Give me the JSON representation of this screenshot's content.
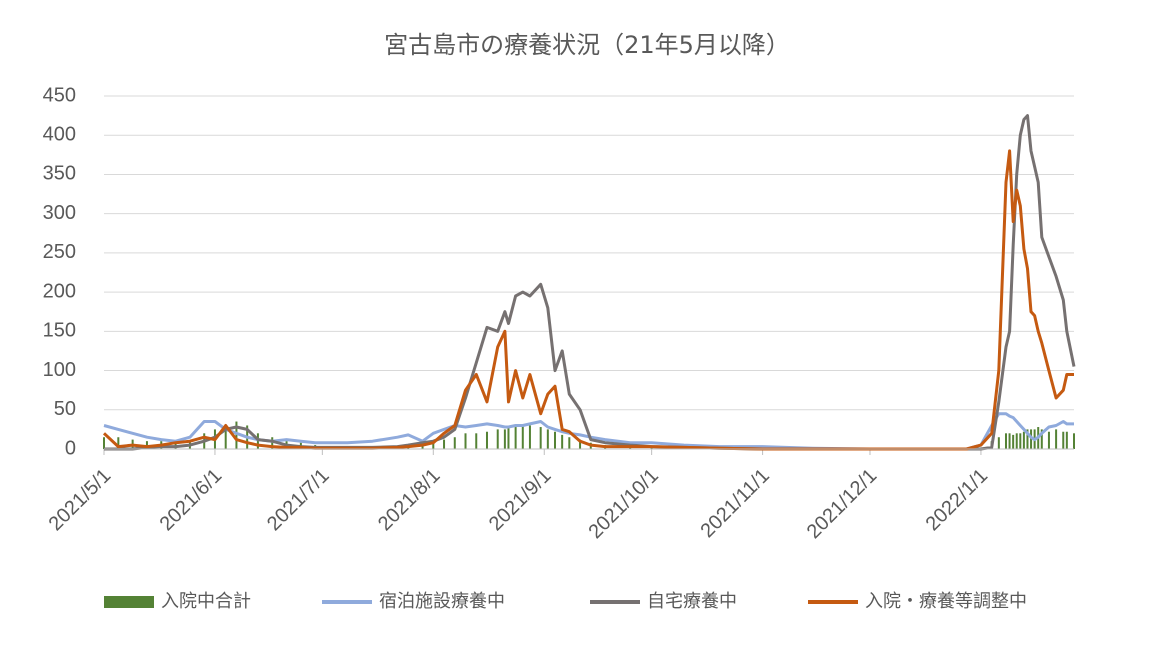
{
  "chart_data": {
    "type": "combo",
    "title": "宮古島市の療養状況（21年5月以降）",
    "x": [
      "2021/5/1",
      "2021/5/5",
      "2021/5/9",
      "2021/5/13",
      "2021/5/17",
      "2021/5/21",
      "2021/5/25",
      "2021/5/29",
      "2021/6/1",
      "2021/6/4",
      "2021/6/7",
      "2021/6/10",
      "2021/6/13",
      "2021/6/17",
      "2021/6/21",
      "2021/6/25",
      "2021/6/29",
      "2021/7/8",
      "2021/7/15",
      "2021/7/22",
      "2021/7/25",
      "2021/7/29",
      "2021/8/1",
      "2021/8/4",
      "2021/8/7",
      "2021/8/10",
      "2021/8/13",
      "2021/8/16",
      "2021/8/19",
      "2021/8/21",
      "2021/8/22",
      "2021/8/24",
      "2021/8/26",
      "2021/8/28",
      "2021/8/31",
      "2021/9/2",
      "2021/9/4",
      "2021/9/6",
      "2021/9/8",
      "2021/9/11",
      "2021/9/14",
      "2021/9/18",
      "2021/9/25",
      "2021/10/1",
      "2021/10/10",
      "2021/10/20",
      "2021/11/1",
      "2021/11/15",
      "2021/12/1",
      "2021/12/15",
      "2021/12/28",
      "2022/1/1",
      "2022/1/4",
      "2022/1/6",
      "2022/1/8",
      "2022/1/9",
      "2022/1/10",
      "2022/1/11",
      "2022/1/12",
      "2022/1/13",
      "2022/1/14",
      "2022/1/15",
      "2022/1/16",
      "2022/1/17",
      "2022/1/18",
      "2022/1/20",
      "2022/1/22",
      "2022/1/24",
      "2022/1/25",
      "2022/1/27"
    ],
    "series": [
      {
        "name": "入院中合計",
        "type": "bar",
        "color": "#548235",
        "values": [
          15,
          15,
          12,
          10,
          10,
          8,
          10,
          20,
          25,
          30,
          35,
          30,
          20,
          15,
          10,
          8,
          5,
          3,
          3,
          3,
          5,
          8,
          10,
          12,
          15,
          20,
          20,
          22,
          25,
          25,
          28,
          28,
          30,
          30,
          28,
          25,
          22,
          18,
          15,
          12,
          8,
          5,
          3,
          2,
          1,
          0,
          0,
          0,
          0,
          0,
          0,
          2,
          10,
          15,
          20,
          20,
          18,
          20,
          20,
          22,
          25,
          25,
          25,
          28,
          25,
          22,
          25,
          22,
          22,
          20
        ]
      },
      {
        "name": "宿泊施設療養中",
        "type": "line",
        "color": "#8faadc",
        "values": [
          30,
          25,
          20,
          15,
          12,
          10,
          15,
          35,
          35,
          25,
          20,
          15,
          12,
          10,
          12,
          10,
          8,
          8,
          10,
          15,
          18,
          10,
          20,
          25,
          30,
          28,
          30,
          32,
          30,
          28,
          28,
          30,
          30,
          32,
          35,
          28,
          25,
          22,
          20,
          18,
          15,
          12,
          8,
          8,
          5,
          3,
          3,
          1,
          0,
          0,
          0,
          5,
          30,
          45,
          45,
          42,
          40,
          35,
          30,
          25,
          20,
          15,
          12,
          15,
          20,
          28,
          30,
          35,
          32,
          32
        ]
      },
      {
        "name": "自宅療養中",
        "type": "line",
        "color": "#767171",
        "values": [
          0,
          0,
          0,
          2,
          3,
          3,
          5,
          10,
          15,
          25,
          28,
          25,
          12,
          10,
          5,
          3,
          2,
          2,
          2,
          3,
          5,
          8,
          10,
          15,
          25,
          65,
          110,
          155,
          150,
          175,
          160,
          195,
          200,
          195,
          210,
          180,
          100,
          125,
          70,
          50,
          12,
          8,
          5,
          3,
          2,
          1,
          0,
          0,
          0,
          0,
          0,
          0,
          2,
          60,
          130,
          150,
          260,
          350,
          400,
          420,
          425,
          380,
          360,
          340,
          270,
          245,
          220,
          190,
          150,
          105
        ]
      },
      {
        "name": "入院・療養等調整中",
        "type": "line",
        "color": "#c55a11",
        "values": [
          20,
          3,
          5,
          3,
          5,
          8,
          10,
          15,
          12,
          30,
          12,
          8,
          5,
          3,
          2,
          2,
          1,
          1,
          1,
          2,
          3,
          5,
          8,
          20,
          30,
          75,
          95,
          60,
          130,
          150,
          60,
          100,
          65,
          95,
          45,
          70,
          80,
          25,
          22,
          10,
          5,
          3,
          3,
          3,
          2,
          1,
          0,
          0,
          0,
          0,
          0,
          5,
          20,
          100,
          340,
          380,
          290,
          330,
          310,
          255,
          230,
          175,
          170,
          150,
          135,
          100,
          65,
          75,
          95,
          95
        ]
      }
    ],
    "xlim": [
      "2021/5/1",
      "2022/1/27"
    ],
    "xticks": [
      "2021/5/1",
      "2021/6/1",
      "2021/7/1",
      "2021/8/1",
      "2021/9/1",
      "2021/10/1",
      "2021/11/1",
      "2021/12/1",
      "2022/1/1"
    ],
    "ylim": [
      0,
      450
    ],
    "yticks": [
      0,
      50,
      100,
      150,
      200,
      250,
      300,
      350,
      400,
      450
    ],
    "grid": true
  }
}
